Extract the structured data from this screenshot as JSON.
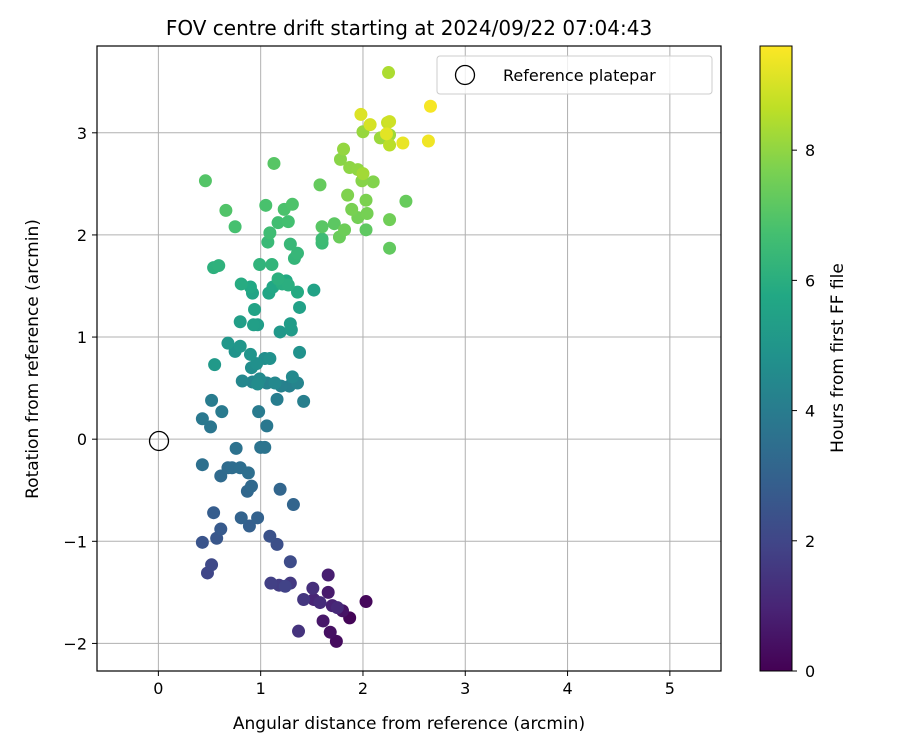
{
  "chart_data": {
    "type": "scatter",
    "title": "FOV centre drift starting at 2024/09/22 07:04:43",
    "xlabel": "Angular distance from reference (arcmin)",
    "ylabel": "Rotation from reference (arcmin)",
    "xlim": [
      -0.6,
      5.5
    ],
    "ylim": [
      -2.27,
      3.85
    ],
    "xticks": [
      0,
      1,
      2,
      3,
      4,
      5
    ],
    "yticks": [
      -2,
      -1,
      0,
      1,
      2,
      3
    ],
    "grid": true,
    "legend": {
      "position": "top-right",
      "entries": [
        "Reference platepar"
      ]
    },
    "reference_point": {
      "x": 0,
      "y": 0,
      "label": "Reference platepar"
    },
    "colorbar": {
      "label": "Hours from first FF file",
      "colormap": "viridis",
      "range": [
        0,
        9.6
      ],
      "ticks": [
        0,
        2,
        4,
        6,
        8
      ]
    },
    "series": [
      {
        "points": [
          {
            "x": 1.87,
            "y": -1.75,
            "t": 0.1
          },
          {
            "x": 2.03,
            "y": -1.59,
            "t": 0.2
          },
          {
            "x": 1.74,
            "y": -1.98,
            "t": 0.3
          },
          {
            "x": 1.68,
            "y": -1.89,
            "t": 0.4
          },
          {
            "x": 1.8,
            "y": -1.68,
            "t": 0.5
          },
          {
            "x": 1.61,
            "y": -1.78,
            "t": 0.6
          },
          {
            "x": 1.66,
            "y": -1.5,
            "t": 0.7
          },
          {
            "x": 1.66,
            "y": -1.33,
            "t": 0.8
          },
          {
            "x": 1.7,
            "y": -1.63,
            "t": 0.9
          },
          {
            "x": 1.52,
            "y": -1.57,
            "t": 1.0
          },
          {
            "x": 1.75,
            "y": -1.65,
            "t": 1.1
          },
          {
            "x": 1.58,
            "y": -1.6,
            "t": 1.2
          },
          {
            "x": 1.51,
            "y": -1.46,
            "t": 1.3
          },
          {
            "x": 1.37,
            "y": -1.88,
            "t": 1.4
          },
          {
            "x": 1.42,
            "y": -1.57,
            "t": 1.5
          },
          {
            "x": 1.29,
            "y": -1.41,
            "t": 1.6
          },
          {
            "x": 1.18,
            "y": -1.43,
            "t": 1.7
          },
          {
            "x": 1.1,
            "y": -1.41,
            "t": 1.8
          },
          {
            "x": 1.24,
            "y": -1.44,
            "t": 1.9
          },
          {
            "x": 0.48,
            "y": -1.31,
            "t": 2.0
          },
          {
            "x": 0.52,
            "y": -1.23,
            "t": 2.1
          },
          {
            "x": 1.29,
            "y": -1.2,
            "t": 2.2
          },
          {
            "x": 1.16,
            "y": -1.03,
            "t": 2.3
          },
          {
            "x": 1.09,
            "y": -0.95,
            "t": 2.4
          },
          {
            "x": 0.43,
            "y": -1.01,
            "t": 2.5
          },
          {
            "x": 0.57,
            "y": -0.97,
            "t": 2.6
          },
          {
            "x": 0.61,
            "y": -0.88,
            "t": 2.7
          },
          {
            "x": 0.54,
            "y": -0.72,
            "t": 2.8
          },
          {
            "x": 0.89,
            "y": -0.85,
            "t": 2.9
          },
          {
            "x": 0.97,
            "y": -0.77,
            "t": 3.0
          },
          {
            "x": 0.81,
            "y": -0.77,
            "t": 3.05
          },
          {
            "x": 1.32,
            "y": -0.64,
            "t": 3.1
          },
          {
            "x": 1.19,
            "y": -0.49,
            "t": 3.15
          },
          {
            "x": 0.87,
            "y": -0.51,
            "t": 3.2
          },
          {
            "x": 0.91,
            "y": -0.46,
            "t": 3.25
          },
          {
            "x": 0.61,
            "y": -0.36,
            "t": 3.3
          },
          {
            "x": 0.68,
            "y": -0.28,
            "t": 3.35
          },
          {
            "x": 0.72,
            "y": -0.28,
            "t": 3.4
          },
          {
            "x": 0.8,
            "y": -0.28,
            "t": 3.45
          },
          {
            "x": 0.88,
            "y": -0.33,
            "t": 3.5
          },
          {
            "x": 0.43,
            "y": -0.25,
            "t": 3.55
          },
          {
            "x": 0.76,
            "y": -0.09,
            "t": 3.6
          },
          {
            "x": 1.0,
            "y": -0.08,
            "t": 3.65
          },
          {
            "x": 1.04,
            "y": -0.08,
            "t": 3.7
          },
          {
            "x": 0.51,
            "y": 0.12,
            "t": 3.75
          },
          {
            "x": 1.06,
            "y": 0.13,
            "t": 3.8
          },
          {
            "x": 0.43,
            "y": 0.2,
            "t": 3.85
          },
          {
            "x": 0.62,
            "y": 0.27,
            "t": 3.9
          },
          {
            "x": 0.98,
            "y": 0.27,
            "t": 3.95
          },
          {
            "x": 0.52,
            "y": 0.38,
            "t": 4.0
          },
          {
            "x": 1.16,
            "y": 0.39,
            "t": 4.05
          },
          {
            "x": 1.42,
            "y": 0.37,
            "t": 4.1
          },
          {
            "x": 1.28,
            "y": 0.52,
            "t": 4.15
          },
          {
            "x": 1.2,
            "y": 0.52,
            "t": 4.2
          },
          {
            "x": 1.06,
            "y": 0.55,
            "t": 4.25
          },
          {
            "x": 1.36,
            "y": 0.55,
            "t": 4.3
          },
          {
            "x": 0.92,
            "y": 0.56,
            "t": 4.35
          },
          {
            "x": 0.82,
            "y": 0.57,
            "t": 4.4
          },
          {
            "x": 1.14,
            "y": 0.55,
            "t": 4.45
          },
          {
            "x": 1.31,
            "y": 0.61,
            "t": 4.5
          },
          {
            "x": 0.99,
            "y": 0.59,
            "t": 4.55
          },
          {
            "x": 0.97,
            "y": 0.54,
            "t": 4.6
          },
          {
            "x": 0.91,
            "y": 0.7,
            "t": 4.65
          },
          {
            "x": 1.04,
            "y": 0.79,
            "t": 4.7
          },
          {
            "x": 0.96,
            "y": 0.74,
            "t": 4.75
          },
          {
            "x": 1.09,
            "y": 0.79,
            "t": 4.8
          },
          {
            "x": 1.38,
            "y": 0.85,
            "t": 4.85
          },
          {
            "x": 0.75,
            "y": 0.86,
            "t": 4.9
          },
          {
            "x": 0.9,
            "y": 0.83,
            "t": 4.95
          },
          {
            "x": 0.8,
            "y": 0.91,
            "t": 5.0
          },
          {
            "x": 0.68,
            "y": 0.94,
            "t": 5.05
          },
          {
            "x": 1.19,
            "y": 1.05,
            "t": 5.1
          },
          {
            "x": 0.55,
            "y": 0.73,
            "t": 5.15
          },
          {
            "x": 1.3,
            "y": 1.07,
            "t": 5.2
          },
          {
            "x": 1.29,
            "y": 1.13,
            "t": 5.25
          },
          {
            "x": 0.97,
            "y": 1.12,
            "t": 5.3
          },
          {
            "x": 0.8,
            "y": 1.15,
            "t": 5.35
          },
          {
            "x": 0.93,
            "y": 1.12,
            "t": 5.4
          },
          {
            "x": 1.38,
            "y": 1.29,
            "t": 5.45
          },
          {
            "x": 1.52,
            "y": 1.46,
            "t": 5.5
          },
          {
            "x": 0.94,
            "y": 1.27,
            "t": 5.55
          },
          {
            "x": 0.92,
            "y": 1.43,
            "t": 5.6
          },
          {
            "x": 1.08,
            "y": 1.43,
            "t": 5.65
          },
          {
            "x": 1.12,
            "y": 1.49,
            "t": 5.7
          },
          {
            "x": 0.9,
            "y": 1.49,
            "t": 5.75
          },
          {
            "x": 1.25,
            "y": 1.55,
            "t": 5.8
          },
          {
            "x": 1.36,
            "y": 1.44,
            "t": 5.85
          },
          {
            "x": 0.81,
            "y": 1.52,
            "t": 5.9
          },
          {
            "x": 1.21,
            "y": 1.52,
            "t": 5.95
          },
          {
            "x": 1.27,
            "y": 1.51,
            "t": 6.0
          },
          {
            "x": 1.17,
            "y": 1.57,
            "t": 6.05
          },
          {
            "x": 0.54,
            "y": 1.68,
            "t": 6.1
          },
          {
            "x": 0.59,
            "y": 1.7,
            "t": 6.15
          },
          {
            "x": 0.99,
            "y": 1.71,
            "t": 6.2
          },
          {
            "x": 1.11,
            "y": 1.71,
            "t": 6.25
          },
          {
            "x": 1.33,
            "y": 1.77,
            "t": 6.3
          },
          {
            "x": 1.36,
            "y": 1.82,
            "t": 6.35
          },
          {
            "x": 1.29,
            "y": 1.91,
            "t": 6.4
          },
          {
            "x": 1.07,
            "y": 1.93,
            "t": 6.45
          },
          {
            "x": 1.6,
            "y": 1.92,
            "t": 6.5
          },
          {
            "x": 1.6,
            "y": 1.96,
            "t": 6.55
          },
          {
            "x": 1.09,
            "y": 2.02,
            "t": 6.6
          },
          {
            "x": 1.17,
            "y": 2.12,
            "t": 6.65
          },
          {
            "x": 1.27,
            "y": 2.13,
            "t": 6.7
          },
          {
            "x": 0.75,
            "y": 2.08,
            "t": 6.75
          },
          {
            "x": 1.05,
            "y": 2.29,
            "t": 6.8
          },
          {
            "x": 1.23,
            "y": 2.25,
            "t": 6.85
          },
          {
            "x": 1.31,
            "y": 2.3,
            "t": 6.9
          },
          {
            "x": 0.66,
            "y": 2.24,
            "t": 6.95
          },
          {
            "x": 0.46,
            "y": 2.53,
            "t": 7.0
          },
          {
            "x": 1.13,
            "y": 2.7,
            "t": 7.05
          },
          {
            "x": 1.6,
            "y": 2.08,
            "t": 7.1
          },
          {
            "x": 1.72,
            "y": 2.11,
            "t": 7.15
          },
          {
            "x": 2.03,
            "y": 2.05,
            "t": 7.2
          },
          {
            "x": 2.26,
            "y": 1.87,
            "t": 7.25
          },
          {
            "x": 1.58,
            "y": 2.49,
            "t": 7.3
          },
          {
            "x": 2.42,
            "y": 2.33,
            "t": 7.35
          },
          {
            "x": 1.77,
            "y": 1.98,
            "t": 7.4
          },
          {
            "x": 1.82,
            "y": 2.05,
            "t": 7.45
          },
          {
            "x": 2.26,
            "y": 2.15,
            "t": 7.5
          },
          {
            "x": 1.95,
            "y": 2.17,
            "t": 7.55
          },
          {
            "x": 2.04,
            "y": 2.21,
            "t": 7.6
          },
          {
            "x": 1.89,
            "y": 2.25,
            "t": 7.65
          },
          {
            "x": 2.03,
            "y": 2.34,
            "t": 7.7
          },
          {
            "x": 1.85,
            "y": 2.39,
            "t": 7.75
          },
          {
            "x": 2.1,
            "y": 2.52,
            "t": 7.8
          },
          {
            "x": 1.99,
            "y": 2.53,
            "t": 7.85
          },
          {
            "x": 1.78,
            "y": 2.74,
            "t": 7.9
          },
          {
            "x": 1.87,
            "y": 2.66,
            "t": 7.95
          },
          {
            "x": 1.95,
            "y": 2.64,
            "t": 8.0
          },
          {
            "x": 1.81,
            "y": 2.84,
            "t": 8.05
          },
          {
            "x": 2.0,
            "y": 3.01,
            "t": 8.1
          },
          {
            "x": 2.17,
            "y": 2.95,
            "t": 8.15
          },
          {
            "x": 2.26,
            "y": 2.98,
            "t": 8.2
          },
          {
            "x": 2.0,
            "y": 2.6,
            "t": 8.25
          },
          {
            "x": 2.25,
            "y": 3.59,
            "t": 8.4
          },
          {
            "x": 2.26,
            "y": 2.88,
            "t": 8.6
          },
          {
            "x": 2.24,
            "y": 3.1,
            "t": 8.8
          },
          {
            "x": 2.26,
            "y": 3.11,
            "t": 8.9
          },
          {
            "x": 2.07,
            "y": 3.08,
            "t": 9.0
          },
          {
            "x": 1.98,
            "y": 3.18,
            "t": 9.1
          },
          {
            "x": 2.23,
            "y": 2.99,
            "t": 9.2
          },
          {
            "x": 2.39,
            "y": 2.9,
            "t": 9.3
          },
          {
            "x": 2.64,
            "y": 2.92,
            "t": 9.4
          },
          {
            "x": 2.66,
            "y": 3.26,
            "t": 9.5
          }
        ]
      }
    ]
  }
}
